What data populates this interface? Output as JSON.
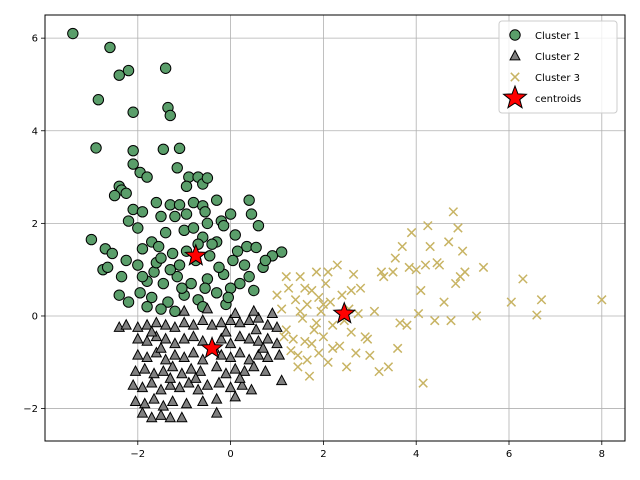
{
  "chart_data": {
    "type": "scatter",
    "title": "",
    "xlabel": "",
    "ylabel": "",
    "xlim": [
      -4.0,
      8.5
    ],
    "ylim": [
      -2.7,
      6.5
    ],
    "xticks": [
      -2,
      0,
      2,
      4,
      6,
      8
    ],
    "yticks": [
      -2,
      0,
      2,
      4,
      6
    ],
    "xtick_labels": [
      "−2",
      "0",
      "2",
      "4",
      "6",
      "8"
    ],
    "ytick_labels": [
      "−2",
      "0",
      "2",
      "4",
      "6"
    ],
    "grid": true,
    "legend_position": "top-right",
    "series": [
      {
        "name": "Cluster 1",
        "marker": "circle",
        "color": "#5a9e6a",
        "points": [
          [
            -3.4,
            6.1
          ],
          [
            -2.6,
            5.8
          ],
          [
            -2.2,
            5.3
          ],
          [
            -2.4,
            5.2
          ],
          [
            -1.4,
            5.35
          ],
          [
            -2.85,
            4.67
          ],
          [
            -2.1,
            4.4
          ],
          [
            -1.35,
            4.5
          ],
          [
            -1.3,
            4.33
          ],
          [
            -2.9,
            3.63
          ],
          [
            -2.1,
            3.57
          ],
          [
            -1.45,
            3.6
          ],
          [
            -1.1,
            3.62
          ],
          [
            -2.1,
            3.28
          ],
          [
            -1.95,
            3.1
          ],
          [
            -1.8,
            3.0
          ],
          [
            -1.15,
            3.2
          ],
          [
            -0.9,
            3.0
          ],
          [
            -0.7,
            3.0
          ],
          [
            -0.6,
            2.85
          ],
          [
            -0.5,
            2.98
          ],
          [
            -0.95,
            2.8
          ],
          [
            -2.4,
            2.8
          ],
          [
            -2.35,
            2.72
          ],
          [
            -2.5,
            2.6
          ],
          [
            -2.25,
            2.65
          ],
          [
            -1.6,
            2.45
          ],
          [
            -1.3,
            2.4
          ],
          [
            -1.1,
            2.4
          ],
          [
            -0.8,
            2.45
          ],
          [
            -0.6,
            2.38
          ],
          [
            -0.3,
            2.5
          ],
          [
            0.4,
            2.5
          ],
          [
            -2.1,
            2.3
          ],
          [
            -1.9,
            2.25
          ],
          [
            -1.5,
            2.15
          ],
          [
            -1.2,
            2.15
          ],
          [
            0.0,
            2.2
          ],
          [
            0.45,
            2.2
          ],
          [
            -2.2,
            2.05
          ],
          [
            -2.0,
            1.9
          ],
          [
            -0.5,
            2.0
          ],
          [
            -0.2,
            2.05
          ],
          [
            0.6,
            1.95
          ],
          [
            -1.7,
            1.6
          ],
          [
            -1.4,
            1.8
          ],
          [
            -1.0,
            1.85
          ],
          [
            -0.8,
            1.9
          ],
          [
            -0.6,
            1.7
          ],
          [
            -0.3,
            1.6
          ],
          [
            0.1,
            1.75
          ],
          [
            0.35,
            1.5
          ],
          [
            0.55,
            1.48
          ],
          [
            1.1,
            1.38
          ],
          [
            -3.0,
            1.65
          ],
          [
            -2.7,
            1.45
          ],
          [
            -2.55,
            1.35
          ],
          [
            -2.25,
            1.2
          ],
          [
            -1.9,
            1.45
          ],
          [
            -1.55,
            1.5
          ],
          [
            -1.25,
            1.35
          ],
          [
            -0.95,
            1.4
          ],
          [
            -0.45,
            1.3
          ],
          [
            0.05,
            1.2
          ],
          [
            0.3,
            1.1
          ],
          [
            0.7,
            1.05
          ],
          [
            0.9,
            1.3
          ],
          [
            -2.75,
            1.0
          ],
          [
            -2.35,
            0.85
          ],
          [
            -2.0,
            1.1
          ],
          [
            -1.65,
            0.95
          ],
          [
            -1.45,
            0.7
          ],
          [
            -1.15,
            0.85
          ],
          [
            -0.85,
            0.7
          ],
          [
            -0.5,
            0.8
          ],
          [
            -0.15,
            0.9
          ],
          [
            0.2,
            0.7
          ],
          [
            0.5,
            0.55
          ],
          [
            -2.4,
            0.45
          ],
          [
            -2.2,
            0.3
          ],
          [
            -1.95,
            0.5
          ],
          [
            -1.7,
            0.4
          ],
          [
            -1.35,
            0.3
          ],
          [
            -1.0,
            0.45
          ],
          [
            -0.7,
            0.35
          ],
          [
            -0.3,
            0.5
          ],
          [
            0.0,
            0.6
          ],
          [
            -1.8,
            0.2
          ],
          [
            -1.5,
            0.15
          ],
          [
            -1.2,
            0.1
          ],
          [
            -0.6,
            0.2
          ],
          [
            -0.1,
            0.25
          ],
          [
            -1.6,
            1.15
          ],
          [
            -1.3,
            1.0
          ],
          [
            -1.1,
            1.1
          ],
          [
            -0.75,
            1.2
          ],
          [
            -0.25,
            1.05
          ],
          [
            0.15,
            1.4
          ],
          [
            -1.8,
            0.75
          ],
          [
            -1.05,
            0.6
          ],
          [
            -0.55,
            0.6
          ],
          [
            -0.05,
            0.4
          ],
          [
            -1.9,
            0.85
          ],
          [
            -0.4,
            1.55
          ],
          [
            -0.7,
            1.55
          ],
          [
            -1.5,
            1.25
          ],
          [
            0.4,
            0.85
          ],
          [
            -2.65,
            1.05
          ],
          [
            0.75,
            1.2
          ],
          [
            -0.95,
            2.2
          ],
          [
            -0.55,
            2.25
          ],
          [
            -0.15,
            1.95
          ]
        ]
      },
      {
        "name": "Cluster 2",
        "marker": "triangle",
        "color": "#808080",
        "points": [
          [
            -2.4,
            -0.25
          ],
          [
            -2.25,
            -0.2
          ],
          [
            -2.0,
            -0.25
          ],
          [
            -1.8,
            -0.2
          ],
          [
            -1.6,
            -0.15
          ],
          [
            -1.4,
            -0.2
          ],
          [
            -1.2,
            -0.25
          ],
          [
            -1.0,
            -0.15
          ],
          [
            -0.8,
            -0.2
          ],
          [
            -0.6,
            -0.1
          ],
          [
            -0.4,
            -0.2
          ],
          [
            -0.2,
            -0.15
          ],
          [
            0.0,
            -0.1
          ],
          [
            0.2,
            -0.15
          ],
          [
            0.4,
            -0.1
          ],
          [
            0.6,
            -0.05
          ],
          [
            0.8,
            -0.2
          ],
          [
            1.0,
            -0.25
          ],
          [
            -2.0,
            -0.5
          ],
          [
            -1.8,
            -0.55
          ],
          [
            -1.6,
            -0.45
          ],
          [
            -1.4,
            -0.5
          ],
          [
            -1.2,
            -0.6
          ],
          [
            -1.0,
            -0.5
          ],
          [
            -0.8,
            -0.45
          ],
          [
            -0.6,
            -0.55
          ],
          [
            -0.2,
            -0.5
          ],
          [
            0.0,
            -0.6
          ],
          [
            0.2,
            -0.45
          ],
          [
            0.4,
            -0.5
          ],
          [
            0.6,
            -0.55
          ],
          [
            0.8,
            -0.5
          ],
          [
            1.0,
            -0.6
          ],
          [
            -2.0,
            -0.85
          ],
          [
            -1.8,
            -0.9
          ],
          [
            -1.6,
            -0.8
          ],
          [
            -1.4,
            -0.95
          ],
          [
            -1.2,
            -0.85
          ],
          [
            -1.0,
            -0.9
          ],
          [
            -0.8,
            -0.8
          ],
          [
            -0.6,
            -0.95
          ],
          [
            -0.2,
            -0.85
          ],
          [
            0.0,
            -0.9
          ],
          [
            0.2,
            -0.8
          ],
          [
            0.4,
            -0.95
          ],
          [
            0.6,
            -0.85
          ],
          [
            0.8,
            -0.9
          ],
          [
            1.05,
            -0.85
          ],
          [
            -2.05,
            -1.2
          ],
          [
            -1.85,
            -1.15
          ],
          [
            -1.65,
            -1.25
          ],
          [
            -1.45,
            -1.2
          ],
          [
            -1.25,
            -1.1
          ],
          [
            -1.05,
            -1.25
          ],
          [
            -0.85,
            -1.15
          ],
          [
            -0.65,
            -1.2
          ],
          [
            -0.3,
            -1.1
          ],
          [
            -0.1,
            -1.25
          ],
          [
            0.1,
            -1.15
          ],
          [
            0.3,
            -1.2
          ],
          [
            0.5,
            -1.1
          ],
          [
            0.75,
            -1.2
          ],
          [
            1.1,
            -1.4
          ],
          [
            -2.1,
            -1.5
          ],
          [
            -1.9,
            -1.55
          ],
          [
            -1.7,
            -1.45
          ],
          [
            -1.5,
            -1.6
          ],
          [
            -1.3,
            -1.5
          ],
          [
            -1.1,
            -1.55
          ],
          [
            -0.9,
            -1.45
          ],
          [
            -0.7,
            -1.6
          ],
          [
            -0.5,
            -1.5
          ],
          [
            -0.25,
            -1.45
          ],
          [
            0.0,
            -1.55
          ],
          [
            0.25,
            -1.5
          ],
          [
            0.45,
            -1.6
          ],
          [
            -2.05,
            -1.85
          ],
          [
            -1.85,
            -1.9
          ],
          [
            -1.65,
            -1.8
          ],
          [
            -1.45,
            -1.95
          ],
          [
            -1.25,
            -1.85
          ],
          [
            -0.95,
            -1.9
          ],
          [
            -0.6,
            -1.85
          ],
          [
            -0.3,
            -1.8
          ],
          [
            0.1,
            -1.75
          ],
          [
            -1.9,
            -2.1
          ],
          [
            -1.7,
            -2.2
          ],
          [
            -1.5,
            -2.15
          ],
          [
            -1.3,
            -2.2
          ],
          [
            -1.05,
            -2.2
          ],
          [
            -0.3,
            -2.1
          ],
          [
            -1.0,
            0.1
          ],
          [
            -0.5,
            0.15
          ],
          [
            0.1,
            0.05
          ],
          [
            0.5,
            0.1
          ],
          [
            0.9,
            0.05
          ],
          [
            -0.1,
            -0.35
          ],
          [
            -1.5,
            -0.7
          ],
          [
            -0.35,
            -0.7
          ],
          [
            0.7,
            -0.7
          ],
          [
            -1.3,
            -1.35
          ],
          [
            0.2,
            -1.35
          ],
          [
            -0.75,
            -1.35
          ],
          [
            0.55,
            -0.3
          ],
          [
            -1.7,
            -0.35
          ]
        ]
      },
      {
        "name": "Cluster 3",
        "marker": "x",
        "color": "#c8b464",
        "points": [
          [
            1.0,
            0.45
          ],
          [
            1.1,
            0.15
          ],
          [
            1.2,
            -0.3
          ],
          [
            1.25,
            0.6
          ],
          [
            1.3,
            -0.75
          ],
          [
            1.4,
            0.35
          ],
          [
            1.45,
            -1.1
          ],
          [
            1.5,
            0.85
          ],
          [
            1.55,
            -0.05
          ],
          [
            1.6,
            -0.55
          ],
          [
            1.65,
            0.25
          ],
          [
            1.7,
            -1.3
          ],
          [
            1.75,
            0.55
          ],
          [
            1.8,
            -0.3
          ],
          [
            1.85,
            0.95
          ],
          [
            1.9,
            -0.8
          ],
          [
            1.95,
            0.1
          ],
          [
            2.0,
            -0.45
          ],
          [
            2.05,
            0.7
          ],
          [
            2.1,
            -1.0
          ],
          [
            2.15,
            0.3
          ],
          [
            2.2,
            -0.2
          ],
          [
            2.3,
            1.1
          ],
          [
            2.35,
            -0.65
          ],
          [
            2.4,
            0.45
          ],
          [
            2.5,
            -1.1
          ],
          [
            2.55,
            0.15
          ],
          [
            2.6,
            -0.35
          ],
          [
            2.65,
            0.9
          ],
          [
            2.7,
            -0.8
          ],
          [
            2.8,
            0.6
          ],
          [
            2.9,
            -0.45
          ],
          [
            3.0,
            -0.85
          ],
          [
            3.1,
            0.1
          ],
          [
            3.2,
            -1.2
          ],
          [
            3.3,
            0.85
          ],
          [
            3.4,
            -1.1
          ],
          [
            3.5,
            0.95
          ],
          [
            3.6,
            -0.7
          ],
          [
            3.7,
            1.5
          ],
          [
            3.8,
            -0.2
          ],
          [
            3.9,
            1.8
          ],
          [
            4.0,
            1.0
          ],
          [
            4.1,
            0.55
          ],
          [
            4.15,
            -1.45
          ],
          [
            4.2,
            1.1
          ],
          [
            4.25,
            1.95
          ],
          [
            4.3,
            1.5
          ],
          [
            4.4,
            -0.1
          ],
          [
            4.5,
            1.1
          ],
          [
            4.6,
            0.3
          ],
          [
            4.7,
            1.6
          ],
          [
            4.8,
            2.25
          ],
          [
            4.85,
            0.7
          ],
          [
            4.9,
            1.9
          ],
          [
            5.0,
            1.4
          ],
          [
            5.05,
            0.95
          ],
          [
            5.3,
            0.0
          ],
          [
            5.45,
            1.05
          ],
          [
            6.05,
            0.3
          ],
          [
            6.3,
            0.8
          ],
          [
            6.6,
            0.02
          ],
          [
            6.7,
            0.35
          ],
          [
            8.0,
            0.35
          ],
          [
            1.35,
            -0.5
          ],
          [
            1.6,
            0.6
          ],
          [
            1.75,
            -0.6
          ],
          [
            2.0,
            0.25
          ],
          [
            2.2,
            -0.7
          ],
          [
            1.5,
            0.1
          ],
          [
            1.9,
            0.4
          ],
          [
            2.45,
            -0.1
          ],
          [
            1.15,
            -0.45
          ],
          [
            1.85,
            -0.15
          ],
          [
            2.75,
            0.05
          ],
          [
            3.25,
            0.95
          ],
          [
            3.55,
            1.25
          ],
          [
            4.05,
            0.05
          ],
          [
            4.45,
            1.15
          ],
          [
            4.75,
            -0.1
          ],
          [
            4.95,
            0.85
          ],
          [
            3.65,
            -0.15
          ],
          [
            2.1,
            0.95
          ],
          [
            1.45,
            -0.85
          ],
          [
            2.6,
            0.55
          ],
          [
            1.2,
            0.85
          ],
          [
            1.65,
            -0.95
          ],
          [
            2.95,
            -0.5
          ],
          [
            3.85,
            1.05
          ]
        ]
      },
      {
        "name": "centroids",
        "marker": "star",
        "color": "#ff0000",
        "points": [
          [
            -0.75,
            1.3
          ],
          [
            -0.4,
            -0.7
          ],
          [
            2.45,
            0.05
          ]
        ]
      }
    ]
  }
}
